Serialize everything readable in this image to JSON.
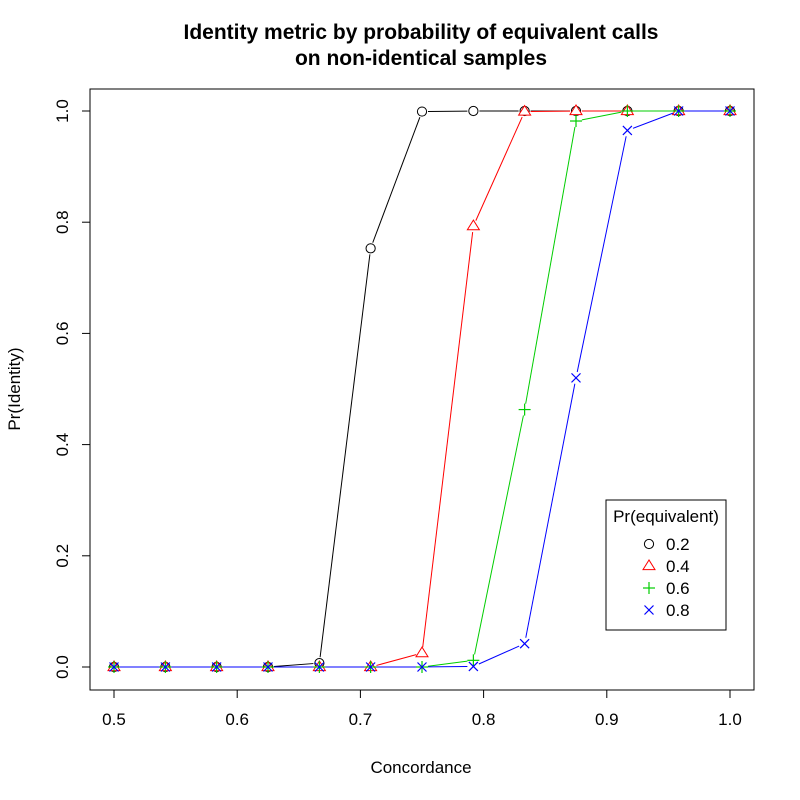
{
  "chart_data": {
    "type": "line",
    "title": "Identity metric by probability of equivalent calls",
    "subtitle": "on non-identical samples",
    "xlabel": "Concordance",
    "ylabel": "Pr(Identity)",
    "xlim": [
      0.5,
      1.0
    ],
    "ylim": [
      0.0,
      1.0
    ],
    "x_ticks": [
      "0.5",
      "0.6",
      "0.7",
      "0.8",
      "0.9",
      "1.0"
    ],
    "y_ticks": [
      "0.0",
      "0.2",
      "0.4",
      "0.6",
      "0.8",
      "1.0"
    ],
    "grid": false,
    "legend": {
      "title": "Pr(equivalent)",
      "position": "bottom-right"
    },
    "x": [
      0.5,
      0.5417,
      0.5833,
      0.625,
      0.6667,
      0.7083,
      0.75,
      0.7917,
      0.8333,
      0.875,
      0.9167,
      0.9583,
      1.0
    ],
    "series": [
      {
        "name": "0.2",
        "color": "#000000",
        "marker": "circle",
        "values": [
          0,
          0,
          0,
          0,
          0.007,
          0.753,
          0.999,
          1.0,
          1.0,
          1.0,
          1.0,
          1.0,
          1.0
        ]
      },
      {
        "name": "0.4",
        "color": "#ff0000",
        "marker": "triangle",
        "values": [
          0,
          0,
          0,
          0,
          0,
          0,
          0.025,
          0.793,
          0.999,
          1.0,
          1.0,
          1.0,
          1.0
        ]
      },
      {
        "name": "0.6",
        "color": "#00cd00",
        "marker": "plus",
        "values": [
          0,
          0,
          0,
          0,
          0,
          0,
          0,
          0.012,
          0.463,
          0.982,
          1.0,
          1.0,
          1.0
        ]
      },
      {
        "name": "0.8",
        "color": "#0000ff",
        "marker": "cross",
        "values": [
          0,
          0,
          0,
          0,
          0,
          0,
          0,
          0.001,
          0.042,
          0.52,
          0.965,
          1.0,
          1.0
        ]
      }
    ]
  }
}
